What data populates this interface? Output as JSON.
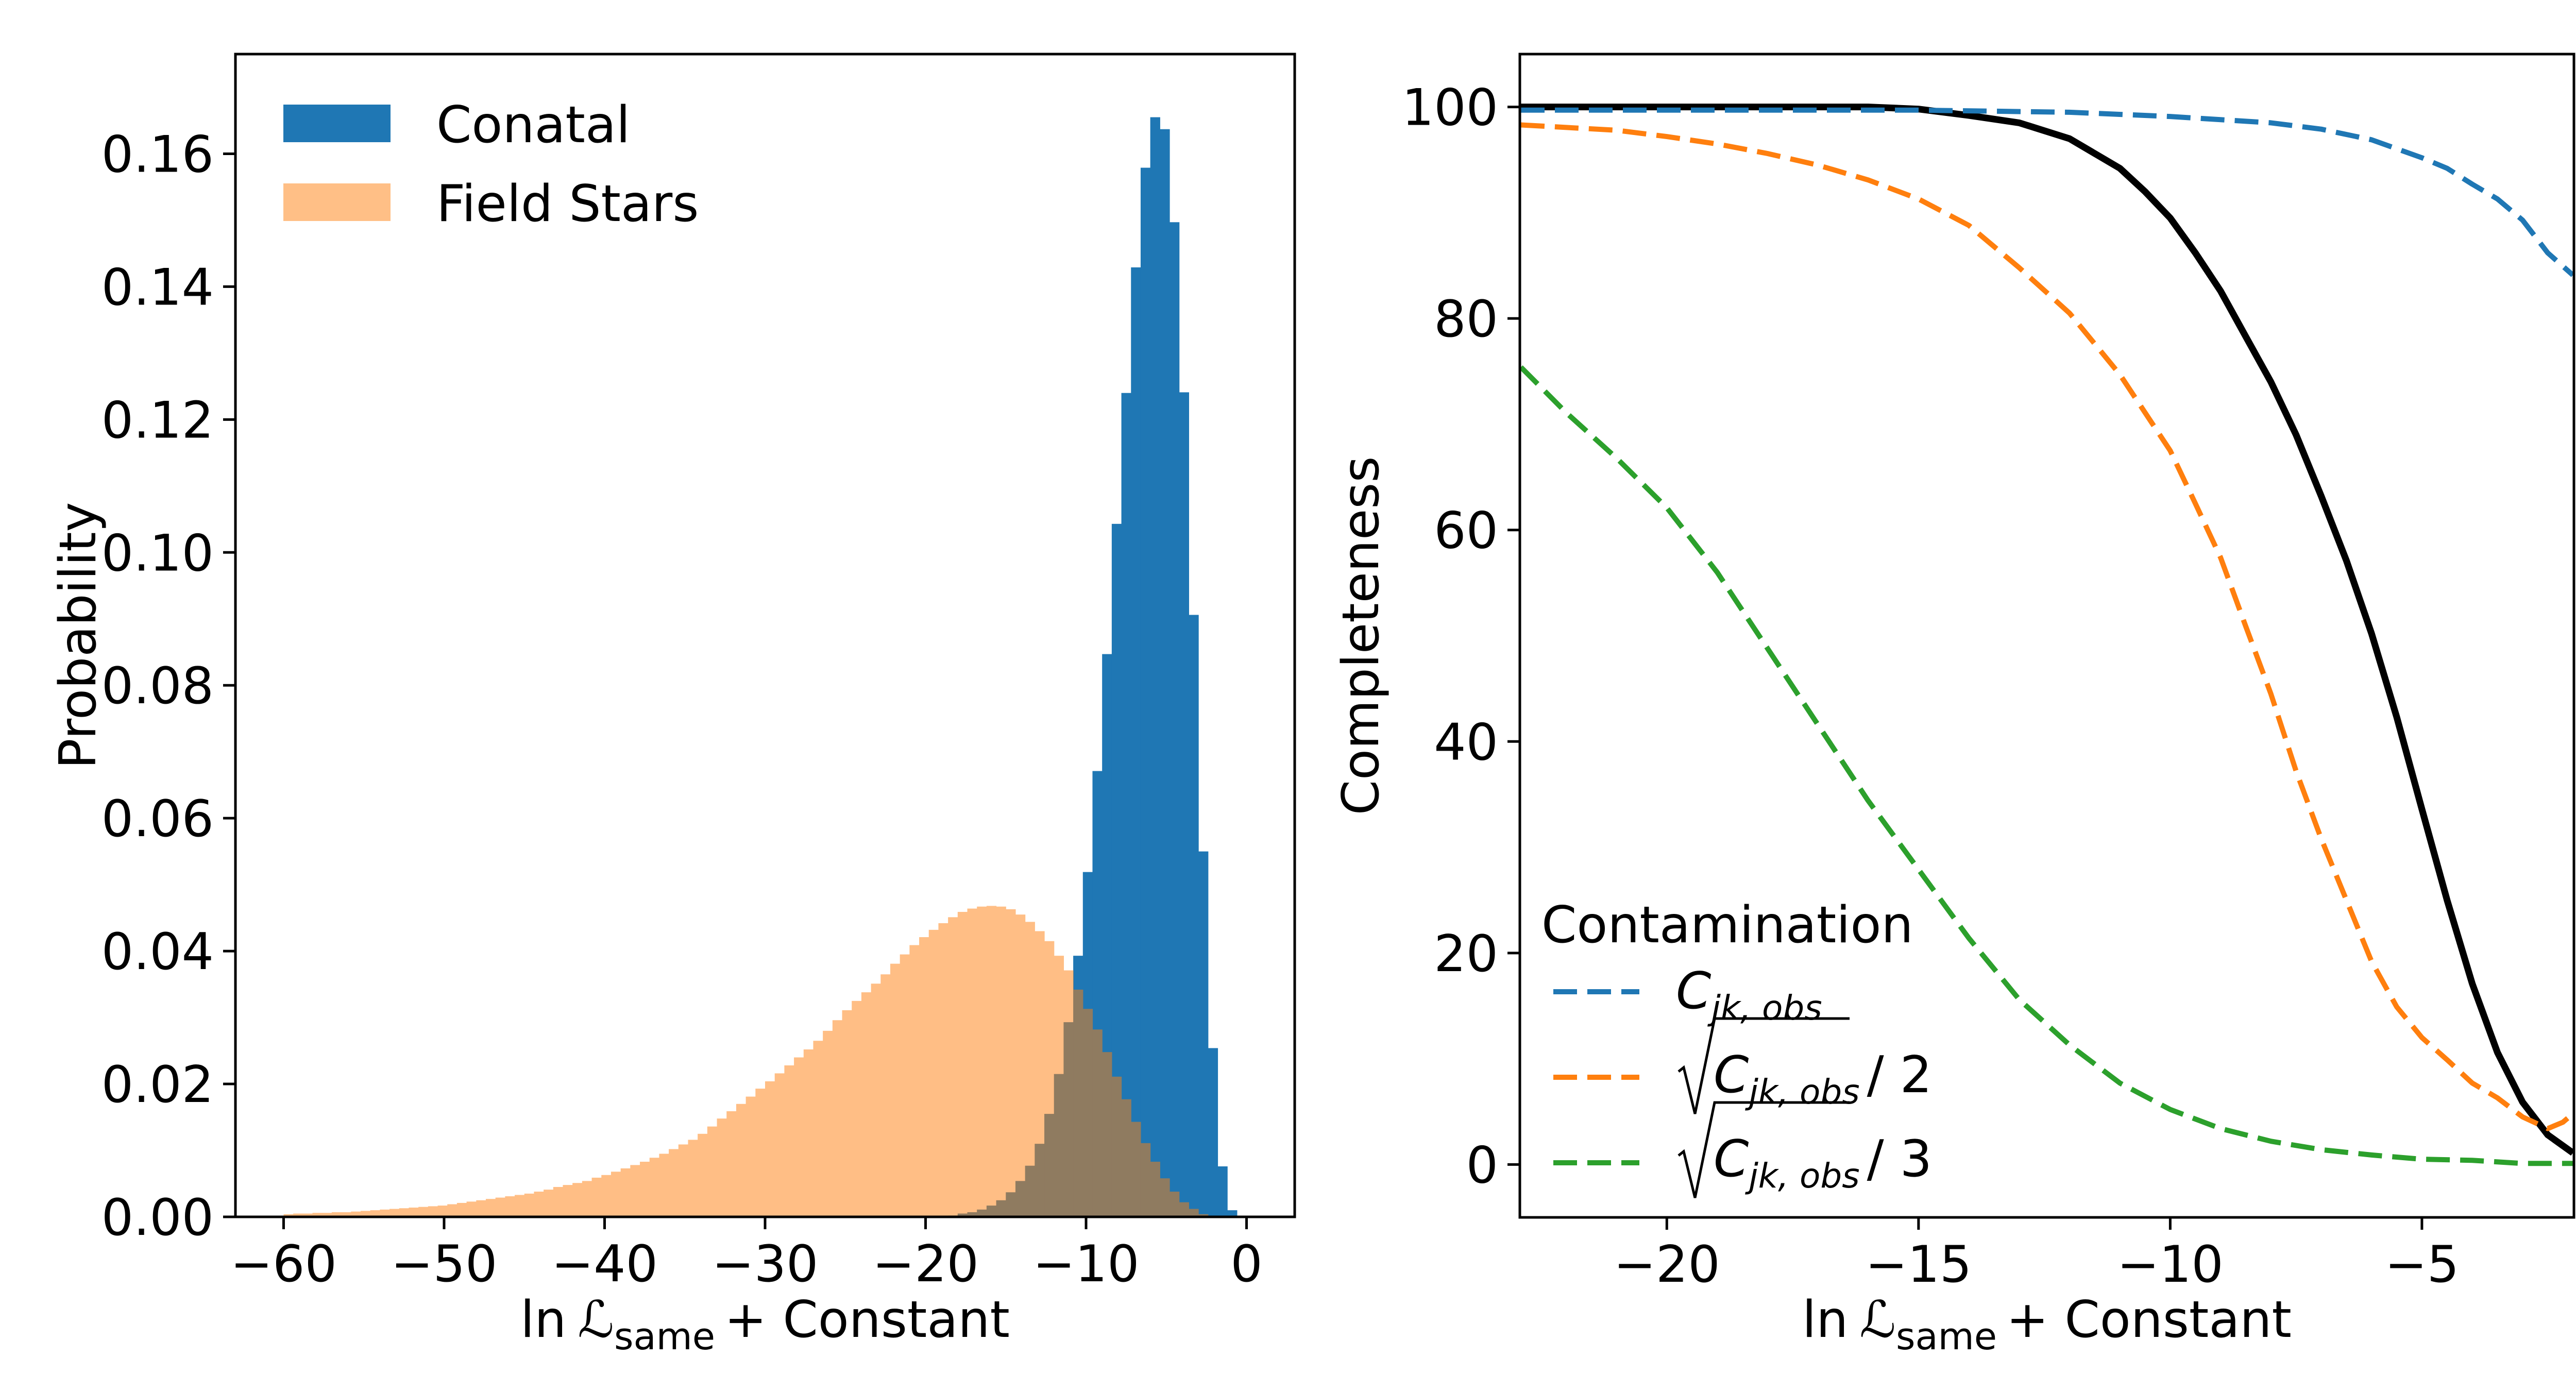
{
  "chart_data": [
    {
      "type": "bar",
      "subtype": "histogram",
      "xlabel": {
        "ln": "ln",
        "script": "ℒ",
        "sub": "same",
        "rest": "+ Constant"
      },
      "ylabel": "Probability",
      "xlim": [
        -63,
        3
      ],
      "ylim": [
        0,
        0.175
      ],
      "xticks": [
        -60,
        -50,
        -40,
        -30,
        -20,
        -10,
        0
      ],
      "xtick_labels": [
        "−60",
        "−50",
        "−40",
        "−30",
        "−20",
        "−10",
        "0"
      ],
      "yticks": [
        0,
        0.02,
        0.04,
        0.06,
        0.08,
        0.1,
        0.12,
        0.14,
        0.16
      ],
      "ytick_labels": [
        "0.00",
        "0.02",
        "0.04",
        "0.06",
        "0.08",
        "0.10",
        "0.12",
        "0.14",
        "0.16"
      ],
      "bin_start": -60,
      "bin_width": 0.6,
      "legend_placement": "top-left",
      "series": [
        {
          "name": "Conatal",
          "color": "#1f77b4",
          "opacity": 1,
          "values": [
            0,
            0,
            0,
            0,
            0,
            0,
            0,
            0,
            0,
            0,
            0,
            0,
            0,
            0,
            0,
            0,
            0,
            0,
            0,
            0,
            0,
            0,
            0,
            0,
            0,
            0,
            0,
            0,
            0,
            0,
            0,
            0,
            0,
            0,
            0,
            0,
            0,
            0,
            0,
            0,
            0,
            0,
            0,
            0,
            0,
            0,
            0,
            0,
            0,
            0,
            0,
            0,
            0,
            0,
            0,
            0,
            0,
            0,
            0,
            0,
            0,
            0,
            0,
            0,
            0,
            0,
            0,
            0,
            0,
            0.0002,
            0.0005,
            0.0007,
            0.0011,
            0.0017,
            0.0025,
            0.0037,
            0.0054,
            0.0077,
            0.011,
            0.0155,
            0.0215,
            0.0293,
            0.0393,
            0.0519,
            0.0671,
            0.0847,
            0.1043,
            0.124,
            0.1429,
            0.1579,
            0.1655,
            0.1637,
            0.1497,
            0.1241,
            0.0906,
            0.055,
            0.0254,
            0.0076,
            0.001,
            0
          ]
        },
        {
          "name": "Field Stars",
          "color": "#ff7f0e",
          "opacity": 0.5,
          "values": [
            0.0004,
            0.0005,
            0.0005,
            0.0006,
            0.0006,
            0.0007,
            0.0007,
            0.0008,
            0.0009,
            0.001,
            0.0011,
            0.0012,
            0.0013,
            0.0014,
            0.0015,
            0.0016,
            0.0017,
            0.0019,
            0.0021,
            0.0023,
            0.0025,
            0.0027,
            0.0029,
            0.0031,
            0.0033,
            0.0035,
            0.0038,
            0.0041,
            0.0045,
            0.0048,
            0.0051,
            0.0054,
            0.0059,
            0.0063,
            0.0068,
            0.0073,
            0.0078,
            0.0083,
            0.0089,
            0.0095,
            0.0102,
            0.0109,
            0.0116,
            0.0125,
            0.0136,
            0.0148,
            0.0159,
            0.017,
            0.0181,
            0.0193,
            0.0204,
            0.0216,
            0.0228,
            0.024,
            0.0252,
            0.0265,
            0.028,
            0.0296,
            0.0311,
            0.0325,
            0.0338,
            0.0351,
            0.0365,
            0.0381,
            0.0395,
            0.0409,
            0.0421,
            0.0432,
            0.0442,
            0.0451,
            0.0459,
            0.0464,
            0.0467,
            0.0468,
            0.0467,
            0.0463,
            0.0455,
            0.0444,
            0.043,
            0.0415,
            0.0393,
            0.0371,
            0.0342,
            0.0313,
            0.0282,
            0.0248,
            0.0211,
            0.0177,
            0.0143,
            0.0111,
            0.0083,
            0.0058,
            0.0038,
            0.0022,
            0.0012,
            0.0004,
            0.0001,
            0,
            0,
            0
          ]
        }
      ]
    },
    {
      "type": "line",
      "xlabel": {
        "ln": "ln",
        "script": "ℒ",
        "sub": "same",
        "rest": "+ Constant"
      },
      "ylabel": "Completeness",
      "xlim": [
        -22.92,
        -1.98
      ],
      "ylim": [
        -5,
        105
      ],
      "xticks": [
        -20,
        -15,
        -10,
        -5
      ],
      "xtick_labels": [
        "−20",
        "−15",
        "−10",
        "−5"
      ],
      "yticks": [
        0,
        20,
        40,
        60,
        80,
        100
      ],
      "ytick_labels": [
        "0",
        "20",
        "40",
        "60",
        "80",
        "100"
      ],
      "legend_title": "Contamination",
      "legend_placement": "bottom-left",
      "series": [
        {
          "name": "completeness",
          "color": "#000000",
          "style": "solid",
          "in_legend": false,
          "x": [
            -22.9,
            -16,
            -15,
            -14,
            -13,
            -12,
            -11,
            -10.5,
            -10,
            -9.5,
            -9,
            -8.5,
            -8,
            -7.5,
            -7,
            -6.5,
            -6,
            -5.5,
            -5,
            -4.5,
            -4,
            -3.5,
            -3,
            -2.5,
            -2
          ],
          "y": [
            100,
            100,
            99.8,
            99.2,
            98.5,
            97.0,
            94.2,
            92.0,
            89.5,
            86.2,
            82.6,
            78.3,
            74.0,
            69.0,
            63.2,
            57.1,
            50.2,
            42.3,
            33.6,
            25.0,
            17.1,
            10.6,
            5.9,
            2.8,
            1.1
          ]
        },
        {
          "name": "C_jk,obs",
          "color": "#1f77b4",
          "style": "dashed",
          "in_legend": true,
          "label": {
            "sqrt": false,
            "base": "C",
            "sub": "jk, obs",
            "suffix": ""
          },
          "x": [
            -22.9,
            -15,
            -12,
            -10,
            -9,
            -8,
            -7,
            -6,
            -5,
            -4.5,
            -4,
            -3.5,
            -3,
            -2.5,
            -2
          ],
          "y": [
            99.7,
            99.7,
            99.5,
            99.1,
            98.8,
            98.5,
            97.9,
            96.9,
            95.2,
            94.2,
            92.7,
            91.3,
            89.3,
            86.2,
            84.1
          ]
        },
        {
          "name": "sqrt(C_jk,obs)/2",
          "color": "#ff7f0e",
          "style": "dashed",
          "in_legend": true,
          "label": {
            "sqrt": true,
            "base": "C",
            "sub": "jk, obs",
            "suffix": "/ 2"
          },
          "x": [
            -22.9,
            -21,
            -20,
            -19,
            -18,
            -17,
            -16,
            -15,
            -14,
            -13,
            -12,
            -11,
            -10,
            -9.5,
            -9,
            -8.5,
            -8,
            -7.5,
            -7,
            -6.5,
            -6,
            -5.5,
            -5,
            -4.5,
            -4,
            -3.5,
            -3,
            -2.5,
            -2.2,
            -2
          ],
          "y": [
            98.3,
            97.8,
            97.2,
            96.5,
            95.6,
            94.5,
            93.1,
            91.3,
            88.8,
            84.8,
            80.5,
            74.7,
            67.5,
            62.5,
            57.4,
            50.9,
            44.5,
            37.2,
            30.8,
            25.0,
            19.2,
            14.9,
            12.0,
            9.9,
            7.7,
            6.3,
            4.5,
            3.4,
            4.0,
            4.8
          ]
        },
        {
          "name": "sqrt(C_jk,obs)/3",
          "color": "#2ca02c",
          "style": "dashed",
          "in_legend": true,
          "label": {
            "sqrt": true,
            "base": "C",
            "sub": "jk, obs",
            "suffix": "/ 3"
          },
          "x": [
            -22.9,
            -22,
            -21,
            -20,
            -19,
            -18,
            -17,
            -16,
            -15,
            -14,
            -13,
            -12,
            -11,
            -10,
            -9,
            -8,
            -7,
            -6,
            -5,
            -4,
            -3,
            -2
          ],
          "y": [
            75.4,
            71.1,
            66.8,
            62.1,
            56.0,
            48.8,
            41.6,
            34.4,
            27.9,
            21.4,
            15.6,
            11.3,
            7.7,
            5.2,
            3.4,
            2.2,
            1.4,
            0.9,
            0.5,
            0.4,
            0.1,
            0.1
          ]
        }
      ]
    }
  ]
}
